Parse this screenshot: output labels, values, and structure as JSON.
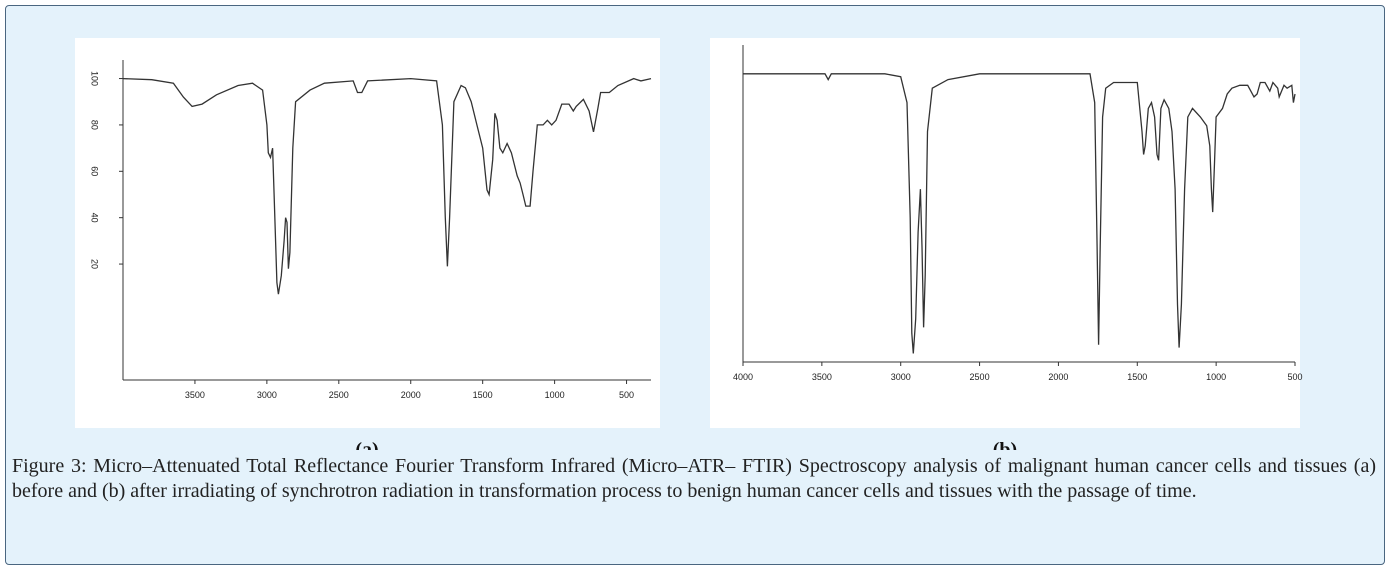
{
  "chart_data": [
    {
      "type": "line",
      "title": "(a)",
      "color": "#333333",
      "x": [
        4000,
        3800,
        3650,
        3580,
        3520,
        3450,
        3350,
        3200,
        3100,
        3030,
        3000,
        2990,
        2975,
        2960,
        2950,
        2930,
        2920,
        2900,
        2880,
        2870,
        2860,
        2850,
        2840,
        2820,
        2800,
        2700,
        2600,
        2400,
        2370,
        2340,
        2300,
        2000,
        1820,
        1780,
        1760,
        1745,
        1730,
        1700,
        1650,
        1620,
        1580,
        1540,
        1500,
        1470,
        1455,
        1430,
        1415,
        1400,
        1380,
        1360,
        1330,
        1300,
        1260,
        1240,
        1220,
        1200,
        1170,
        1150,
        1120,
        1080,
        1050,
        1020,
        990,
        950,
        900,
        870,
        850,
        800,
        760,
        730,
        700,
        680,
        620,
        560,
        450,
        400,
        330
      ],
      "values": [
        100,
        99.5,
        98,
        92,
        88,
        89,
        93,
        97,
        98,
        95,
        80,
        68,
        66,
        70,
        50,
        12,
        7,
        15,
        30,
        40,
        38,
        18,
        25,
        70,
        90,
        95,
        98,
        99,
        94,
        94,
        99,
        100,
        99,
        80,
        40,
        19,
        40,
        90,
        97,
        96,
        90,
        80,
        70,
        52,
        50,
        65,
        85,
        82,
        70,
        68,
        72,
        68,
        58,
        55,
        50,
        45,
        45,
        60,
        80,
        80,
        82,
        80,
        82,
        89,
        89,
        86,
        88,
        91,
        86,
        77,
        87,
        94,
        94,
        97,
        100,
        99,
        100
      ],
      "xlim": [
        4000,
        330
      ],
      "ylim": [
        -30,
        108
      ],
      "xticks": [
        3500,
        3000,
        2500,
        2000,
        1500,
        1000,
        500
      ],
      "yticks": [
        100,
        80,
        60,
        40,
        20
      ]
    },
    {
      "type": "line",
      "title": "(b)",
      "color": "#333333",
      "x": [
        4000,
        3700,
        3480,
        3460,
        3440,
        3100,
        3000,
        2960,
        2940,
        2930,
        2920,
        2905,
        2890,
        2875,
        2865,
        2855,
        2845,
        2830,
        2800,
        2700,
        2500,
        1800,
        1770,
        1755,
        1745,
        1735,
        1720,
        1700,
        1650,
        1500,
        1470,
        1460,
        1450,
        1430,
        1410,
        1390,
        1375,
        1365,
        1350,
        1330,
        1300,
        1280,
        1260,
        1245,
        1235,
        1220,
        1200,
        1180,
        1150,
        1100,
        1060,
        1040,
        1030,
        1022,
        1010,
        1000,
        960,
        930,
        900,
        850,
        800,
        760,
        740,
        720,
        690,
        660,
        640,
        610,
        600,
        570,
        550,
        520,
        510,
        500
      ],
      "values": [
        100,
        100,
        100,
        98,
        100,
        100,
        99,
        90,
        50,
        10,
        3,
        15,
        45,
        60,
        40,
        12,
        30,
        80,
        95,
        98,
        100,
        100,
        90,
        40,
        6,
        40,
        85,
        95,
        97,
        97,
        80,
        72,
        75,
        88,
        90,
        85,
        72,
        70,
        88,
        91,
        88,
        80,
        60,
        20,
        5,
        20,
        60,
        85,
        88,
        85,
        82,
        75,
        60,
        52,
        70,
        85,
        88,
        93,
        95,
        96,
        96,
        92,
        93,
        97,
        97,
        94,
        97,
        95,
        92,
        96,
        95,
        96,
        90,
        93
      ],
      "xlim": [
        4000,
        500
      ],
      "ylim": [
        0,
        110
      ],
      "xticks": [
        4000,
        3500,
        3000,
        2500,
        2000,
        1500,
        1000,
        500
      ]
    }
  ],
  "caption": "Figure 3: Micro–Attenuated Total Reflectance Fourier Transform Infrared (Micro–ATR– FTIR) Spectroscopy analysis of malignant human cancer cells and tissues (a) before and (b) after irradiating of synchrotron radiation in transformation process to benign human cancer cells and tissues with the passage of time."
}
